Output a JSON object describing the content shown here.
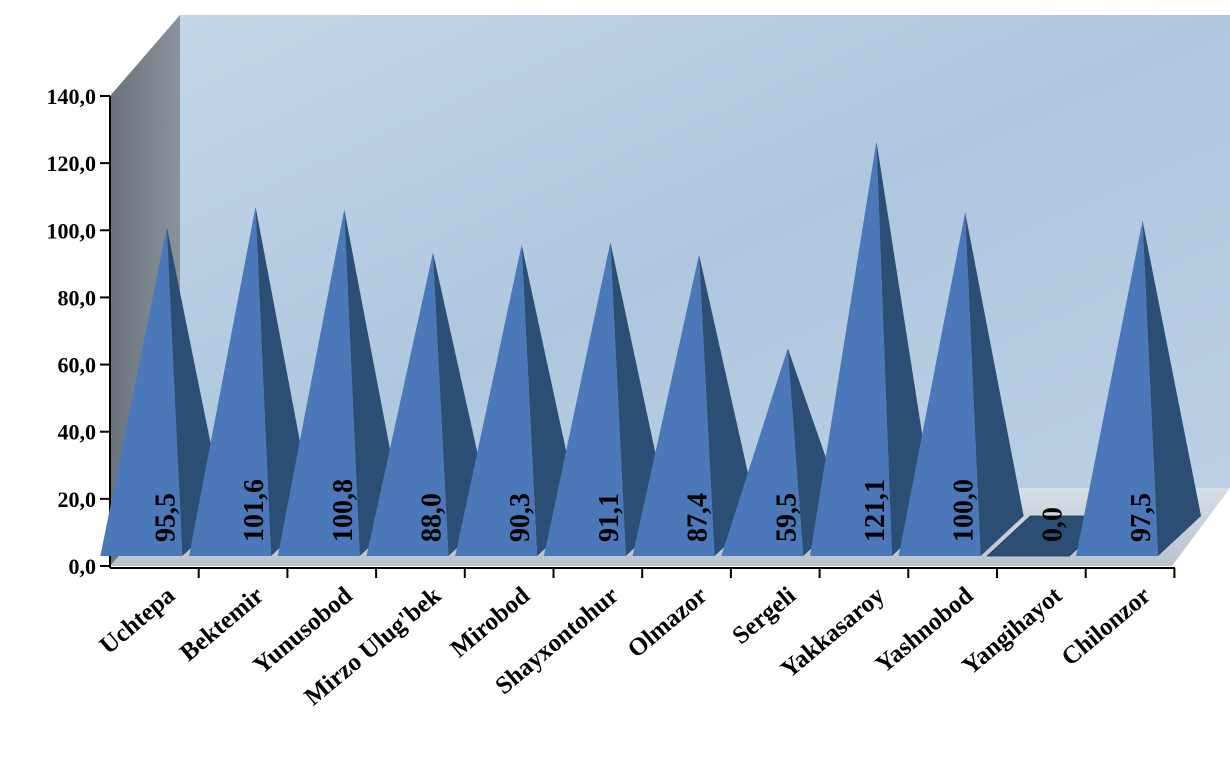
{
  "chart_data": {
    "type": "bar",
    "bar_shape": "pyramid-3d",
    "categories": [
      "Uchtepa",
      "Bektemir",
      "Yunusobod",
      "Mirzo Ulug'bek",
      "Mirobod",
      "Shayxontohur",
      "Olmazor",
      "Sergeli",
      "Yakkasaroy",
      "Yashnobod",
      "Yangihayot",
      "Chilonzor"
    ],
    "values": [
      95.5,
      101.6,
      100.8,
      88.0,
      90.3,
      91.1,
      87.4,
      59.5,
      121.1,
      100.0,
      0.0,
      97.5
    ],
    "value_labels": [
      "95,5",
      "101,6",
      "100,8",
      "88,0",
      "90,3",
      "91,1",
      "87,4",
      "59,5",
      "121,1",
      "100,0",
      "0,0",
      "97,5"
    ],
    "y_ticks": [
      "0,0",
      "20,0",
      "40,0",
      "60,0",
      "80,0",
      "100,0",
      "120,0",
      "140,0"
    ],
    "ylim": [
      0,
      140
    ],
    "title": "",
    "xlabel": "",
    "ylabel": "",
    "grid": false,
    "legend": "none",
    "colors": {
      "front_face": "#4a78b8",
      "side_face": "#2c4d74",
      "back_wall": "#b9cfe3",
      "side_wall": "#767e88",
      "floor": "#cdd6e0"
    }
  }
}
